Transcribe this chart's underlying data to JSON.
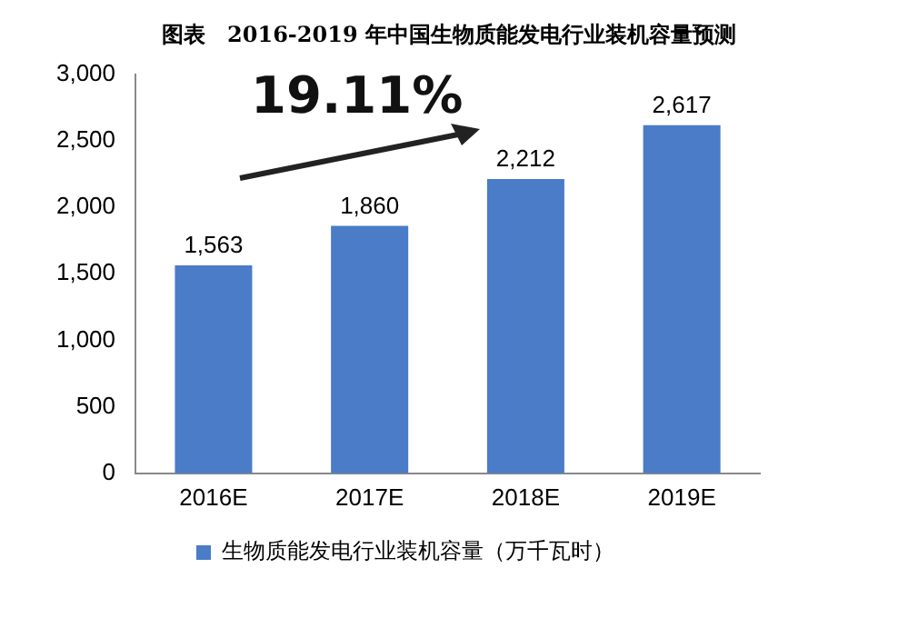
{
  "chart_data": {
    "type": "bar",
    "title": "图表　2016-2019 年中国生物质能发电行业装机容量预测",
    "categories": [
      "2016E",
      "2017E",
      "2018E",
      "2019E"
    ],
    "series": [
      {
        "name": "生物质能发电行业装机容量（万千瓦时）",
        "color": "#4a7cc7",
        "values": [
          1563,
          1860,
          2212,
          2617
        ],
        "value_labels": [
          "1,563",
          "1,860",
          "2,212",
          "2,617"
        ]
      }
    ],
    "ylim": [
      0,
      3000
    ],
    "yticks": [
      0,
      {
        "value": 500,
        "label": "500"
      },
      {
        "value": 1000,
        "label": "1,000"
      },
      {
        "value": 1500,
        "label": "1,500"
      },
      {
        "value": 2000,
        "label": "2,000"
      },
      {
        "value": 2500,
        "label": "2,500"
      },
      {
        "value": 3000,
        "label": "3,000"
      }
    ],
    "annotations": [
      "19.11%"
    ],
    "legend": "bottom",
    "grid": false
  }
}
